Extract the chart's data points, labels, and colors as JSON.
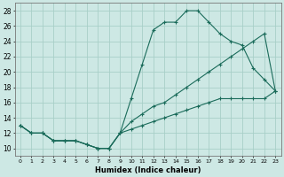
{
  "xlabel": "Humidex (Indice chaleur)",
  "bg_color": "#cde8e4",
  "grid_color": "#a8cfc8",
  "line_color": "#1a6b5a",
  "xlim": [
    -0.5,
    23.5
  ],
  "ylim": [
    9,
    29
  ],
  "xticks": [
    0,
    1,
    2,
    3,
    4,
    5,
    6,
    7,
    8,
    9,
    10,
    11,
    12,
    13,
    14,
    15,
    16,
    17,
    18,
    19,
    20,
    21,
    22,
    23
  ],
  "yticks": [
    10,
    12,
    14,
    16,
    18,
    20,
    22,
    24,
    26,
    28
  ],
  "line1_x": [
    0,
    1,
    2,
    3,
    4,
    5,
    6,
    7,
    8,
    9,
    10,
    11,
    12,
    13,
    14,
    15,
    16,
    17,
    18,
    19,
    20,
    21,
    22,
    23
  ],
  "line1_y": [
    13,
    12,
    12,
    11,
    11,
    11,
    10.5,
    10,
    10,
    12,
    16.5,
    21,
    25.5,
    26.5,
    26.5,
    28,
    28,
    26.5,
    25,
    24,
    23.5,
    20.5,
    19,
    17.5
  ],
  "line2_x": [
    0,
    1,
    2,
    3,
    4,
    5,
    6,
    7,
    8,
    9,
    10,
    11,
    12,
    13,
    14,
    15,
    16,
    17,
    18,
    19,
    20,
    21,
    22,
    23
  ],
  "line2_y": [
    13,
    12,
    12,
    11,
    11,
    11,
    10.5,
    10,
    10,
    12,
    13.5,
    14.5,
    15.5,
    16,
    17,
    18,
    19,
    20,
    21,
    22,
    23,
    24,
    25,
    17.5
  ],
  "line3_x": [
    0,
    1,
    2,
    3,
    4,
    5,
    6,
    7,
    8,
    9,
    10,
    11,
    12,
    13,
    14,
    15,
    16,
    17,
    18,
    19,
    20,
    21,
    22,
    23
  ],
  "line3_y": [
    13,
    12,
    12,
    11,
    11,
    11,
    10.5,
    10,
    10,
    12,
    12.5,
    13,
    13.5,
    14,
    14.5,
    15,
    15.5,
    16,
    16.5,
    16.5,
    16.5,
    16.5,
    16.5,
    17.5
  ]
}
